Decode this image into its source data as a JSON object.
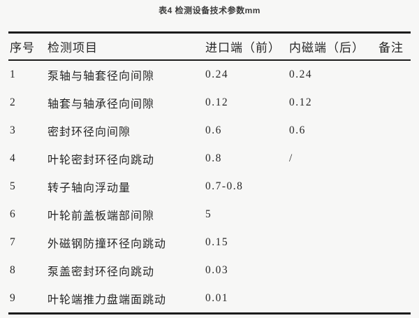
{
  "title": "表4 检测设备技术参数mm",
  "colors": {
    "background": "#f7f7f6",
    "rule": "#1c1c1c",
    "text": "#262626"
  },
  "table": {
    "columns": [
      "序号",
      "检测项目",
      "进口端（前）",
      "内磁端（后）",
      "备注"
    ],
    "rows": [
      {
        "no": "1",
        "item": "泵轴与轴套径向间隙",
        "front": "0.24",
        "rear": "0.24",
        "note": ""
      },
      {
        "no": "2",
        "item": "轴套与轴承径向间隙",
        "front": "0.12",
        "rear": "0.12",
        "note": ""
      },
      {
        "no": "3",
        "item": "密封环径向间隙",
        "front": "0.6",
        "rear": "0.6",
        "note": ""
      },
      {
        "no": "4",
        "item": "叶轮密封环径向跳动",
        "front": "0.8",
        "rear": "/",
        "note": ""
      },
      {
        "no": "5",
        "item": "转子轴向浮动量",
        "front": "0.7-0.8",
        "rear": "",
        "note": ""
      },
      {
        "no": "6",
        "item": "叶轮前盖板端部间隙",
        "front": "5",
        "rear": "",
        "note": ""
      },
      {
        "no": "7",
        "item": "外磁钢防撞环径向跳动",
        "front": "0.15",
        "rear": "",
        "note": ""
      },
      {
        "no": "8",
        "item": "泵盖密封环径向跳动",
        "front": "0.03",
        "rear": "",
        "note": ""
      },
      {
        "no": "9",
        "item": "叶轮端推力盘端面跳动",
        "front": "0.01",
        "rear": "",
        "note": ""
      }
    ]
  }
}
